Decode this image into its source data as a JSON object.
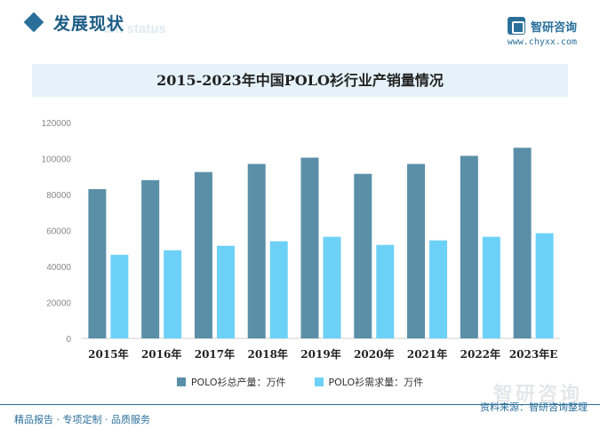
{
  "header": {
    "section_title": "发展现状",
    "section_subtitle": "ent status",
    "brand_name": "智研咨询",
    "brand_url": "www.chyxx.com"
  },
  "watermark_text": "智研咨询",
  "footer": {
    "left": "精品报告 · 专项定制 · 品质服务",
    "source": "资料来源：智研咨询整理"
  },
  "colors": {
    "production": "#5b8fa8",
    "demand": "#6dd1f7",
    "accent": "#2a6f9a",
    "title_bg": "#e6f2fa"
  },
  "chart_data": {
    "type": "bar",
    "title": "2015-2023年中国POLO衫行业产销量情况",
    "categories": [
      "2015年",
      "2016年",
      "2017年",
      "2018年",
      "2019年",
      "2020年",
      "2021年",
      "2022年",
      "2023年E"
    ],
    "series": [
      {
        "name": "POLO衫总产量：万件",
        "values": [
          83000,
          88000,
          92500,
          97000,
          100500,
          91500,
          97000,
          101500,
          106000
        ]
      },
      {
        "name": "POLO衫需求量：万件",
        "values": [
          46500,
          49000,
          51500,
          54000,
          56500,
          52000,
          54500,
          56500,
          58500
        ]
      }
    ],
    "ylim": [
      0,
      120000
    ],
    "yticks": [
      0,
      20000,
      40000,
      60000,
      80000,
      100000,
      120000
    ],
    "grid": false,
    "legend_position": "bottom"
  }
}
